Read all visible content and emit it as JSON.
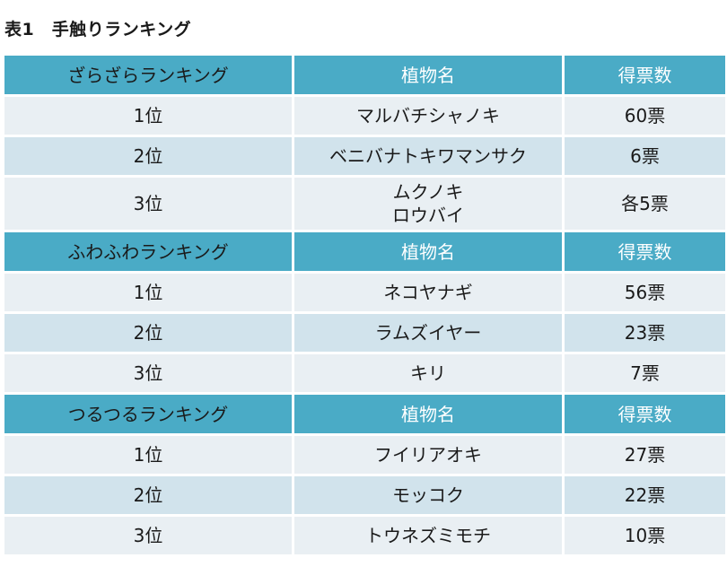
{
  "title": "表1　手触りランキング",
  "sections": [
    {
      "header": {
        "category": "ざらざらランキング",
        "plant": "植物名",
        "votes": "得票数"
      },
      "rows": [
        {
          "rank": "1位",
          "plants": [
            "マルバチシャノキ"
          ],
          "votes": "60票"
        },
        {
          "rank": "2位",
          "plants": [
            "ベニバナトキワマンサク"
          ],
          "votes": "6票"
        },
        {
          "rank": "3位",
          "plants": [
            "ムクノキ",
            "ロウバイ"
          ],
          "votes": "各5票"
        }
      ]
    },
    {
      "header": {
        "category": "ふわふわランキング",
        "plant": "植物名",
        "votes": "得票数"
      },
      "rows": [
        {
          "rank": "1位",
          "plants": [
            "ネコヤナギ"
          ],
          "votes": "56票"
        },
        {
          "rank": "2位",
          "plants": [
            "ラムズイヤー"
          ],
          "votes": "23票"
        },
        {
          "rank": "3位",
          "plants": [
            "キリ"
          ],
          "votes": "7票"
        }
      ]
    },
    {
      "header": {
        "category": "つるつるランキング",
        "plant": "植物名",
        "votes": "得票数"
      },
      "rows": [
        {
          "rank": "1位",
          "plants": [
            "フイリアオキ"
          ],
          "votes": "27票"
        },
        {
          "rank": "2位",
          "plants": [
            "モッコク"
          ],
          "votes": "22票"
        },
        {
          "rank": "3位",
          "plants": [
            "トウネズミモチ"
          ],
          "votes": "10票"
        }
      ]
    }
  ],
  "colors": {
    "header_bg": "#4aabc6",
    "row_light": "#e9eff3",
    "row_dark": "#d1e3ec"
  }
}
